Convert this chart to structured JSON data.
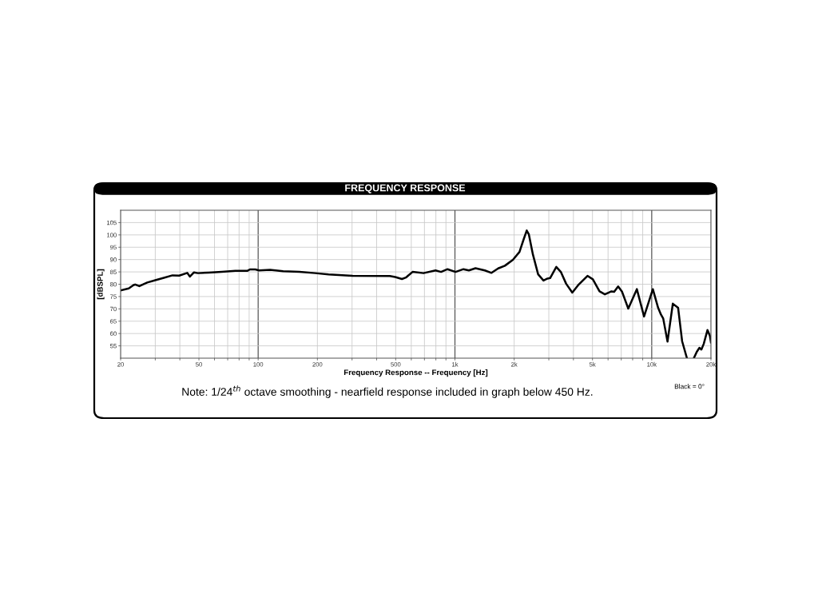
{
  "chart_data": {
    "type": "line",
    "title": "FREQUENCY RESPONSE",
    "xlabel": "Frequency Response -- Frequency [Hz]",
    "ylabel": "[dBSPL]",
    "log": "x",
    "grid": true,
    "marker": "none",
    "line_style": "solid",
    "xlim": [
      20,
      20000
    ],
    "ylim": [
      50,
      110
    ],
    "xticks": [
      20,
      {
        "value": 30,
        "label": null
      },
      {
        "value": 40,
        "label": null
      },
      50,
      {
        "value": 60,
        "label": null
      },
      {
        "value": 70,
        "label": null
      },
      {
        "value": 80,
        "label": null
      },
      {
        "value": 90,
        "label": null
      },
      100,
      200,
      {
        "value": 300,
        "label": null
      },
      {
        "value": 400,
        "label": null
      },
      500,
      {
        "value": 600,
        "label": null
      },
      {
        "value": 700,
        "label": null
      },
      {
        "value": 800,
        "label": null
      },
      {
        "value": 900,
        "label": null
      },
      {
        "value": 1000,
        "label": "1k"
      },
      {
        "value": 2000,
        "label": "2k"
      },
      {
        "value": 3000,
        "label": null
      },
      {
        "value": 4000,
        "label": null
      },
      {
        "value": 5000,
        "label": "5k"
      },
      {
        "value": 6000,
        "label": null
      },
      {
        "value": 7000,
        "label": null
      },
      {
        "value": 8000,
        "label": null
      },
      {
        "value": 9000,
        "label": null
      },
      {
        "value": 10000,
        "label": "10k"
      },
      {
        "value": 20000,
        "label": "20k"
      }
    ],
    "yticks": [
      55,
      60,
      65,
      70,
      75,
      80,
      85,
      90,
      95,
      100,
      105
    ],
    "x": [
      20,
      22,
      23.2,
      23.7,
      24.9,
      27.3,
      30,
      32.9,
      36.7,
      39.7,
      43.6,
      45,
      47.2,
      49.4,
      56,
      65.4,
      76.5,
      88,
      90.8,
      96.7,
      101,
      115,
      134,
      162,
      195,
      228,
      302,
      467,
      497,
      538,
      563,
      609,
      692,
      797,
      850,
      917,
      1007,
      1105,
      1177,
      1272,
      1419,
      1534,
      1658,
      1794,
      1970,
      2128,
      2230,
      2316,
      2375,
      2489,
      2647,
      2818,
      2953,
      3046,
      3274,
      3452,
      3673,
      3948,
      4227,
      4716,
      5022,
      5428,
      5778,
      6245,
      6442,
      6751,
      7073,
      7600,
      8403,
      9142,
      10132,
      10780,
      11140,
      11440,
      12030,
      12800,
      13620,
      14270,
      15100,
      15700,
      16420,
      16950,
      17480,
      17880,
      18380,
      19200,
      19750,
      20000
    ],
    "series": [
      {
        "color": "#000000",
        "values": [
          77.5,
          78.3,
          79.6,
          79.9,
          79.2,
          80.7,
          81.6,
          82.5,
          83.6,
          83.5,
          84.6,
          83.1,
          84.8,
          84.5,
          84.7,
          85.0,
          85.4,
          85.4,
          86.0,
          86.0,
          85.6,
          85.8,
          85.3,
          85.0,
          84.5,
          84.0,
          83.4,
          83.3,
          82.9,
          82.1,
          82.7,
          85.0,
          84.5,
          85.6,
          85.0,
          86.1,
          85.0,
          86.1,
          85.6,
          86.5,
          85.6,
          84.6,
          86.4,
          87.5,
          89.9,
          93.1,
          98.0,
          101.8,
          100.2,
          92.1,
          84.0,
          81.5,
          82.3,
          82.5,
          87.0,
          85.0,
          80.2,
          76.6,
          79.6,
          83.4,
          82.0,
          77.1,
          75.9,
          77.1,
          76.9,
          79.1,
          76.9,
          70.1,
          78.0,
          66.9,
          78.0,
          70.4,
          67.7,
          66.1,
          56.7,
          72.1,
          70.4,
          56.9,
          50.0,
          null,
          50.2,
          52.6,
          54.2,
          53.5,
          55.8,
          61.4,
          59.1,
          56.4
        ]
      }
    ],
    "annotations": [
      "Note: 1/24$^{th}$ octave smoothing - nearfield response included in graph below 450 Hz.",
      "Black = 0°"
    ]
  }
}
